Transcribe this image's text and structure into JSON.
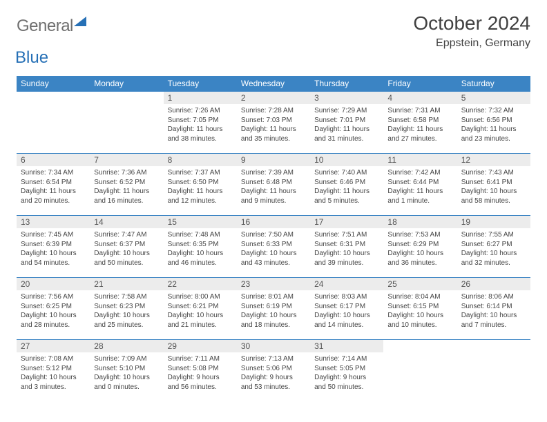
{
  "logo": {
    "text1": "General",
    "text2": "Blue"
  },
  "title": "October 2024",
  "location": "Eppstein, Germany",
  "colors": {
    "header_bg": "#3b84c4",
    "header_text": "#ffffff",
    "daynum_bg": "#ececec",
    "row_border": "#3b84c4",
    "logo_gray": "#6f6f6f",
    "logo_blue": "#2670b6"
  },
  "weekdays": [
    "Sunday",
    "Monday",
    "Tuesday",
    "Wednesday",
    "Thursday",
    "Friday",
    "Saturday"
  ],
  "weeks": [
    [
      {
        "empty": true
      },
      {
        "empty": true
      },
      {
        "n": "1",
        "sr": "Sunrise: 7:26 AM",
        "ss": "Sunset: 7:05 PM",
        "dl": "Daylight: 11 hours and 38 minutes."
      },
      {
        "n": "2",
        "sr": "Sunrise: 7:28 AM",
        "ss": "Sunset: 7:03 PM",
        "dl": "Daylight: 11 hours and 35 minutes."
      },
      {
        "n": "3",
        "sr": "Sunrise: 7:29 AM",
        "ss": "Sunset: 7:01 PM",
        "dl": "Daylight: 11 hours and 31 minutes."
      },
      {
        "n": "4",
        "sr": "Sunrise: 7:31 AM",
        "ss": "Sunset: 6:58 PM",
        "dl": "Daylight: 11 hours and 27 minutes."
      },
      {
        "n": "5",
        "sr": "Sunrise: 7:32 AM",
        "ss": "Sunset: 6:56 PM",
        "dl": "Daylight: 11 hours and 23 minutes."
      }
    ],
    [
      {
        "n": "6",
        "sr": "Sunrise: 7:34 AM",
        "ss": "Sunset: 6:54 PM",
        "dl": "Daylight: 11 hours and 20 minutes."
      },
      {
        "n": "7",
        "sr": "Sunrise: 7:36 AM",
        "ss": "Sunset: 6:52 PM",
        "dl": "Daylight: 11 hours and 16 minutes."
      },
      {
        "n": "8",
        "sr": "Sunrise: 7:37 AM",
        "ss": "Sunset: 6:50 PM",
        "dl": "Daylight: 11 hours and 12 minutes."
      },
      {
        "n": "9",
        "sr": "Sunrise: 7:39 AM",
        "ss": "Sunset: 6:48 PM",
        "dl": "Daylight: 11 hours and 9 minutes."
      },
      {
        "n": "10",
        "sr": "Sunrise: 7:40 AM",
        "ss": "Sunset: 6:46 PM",
        "dl": "Daylight: 11 hours and 5 minutes."
      },
      {
        "n": "11",
        "sr": "Sunrise: 7:42 AM",
        "ss": "Sunset: 6:44 PM",
        "dl": "Daylight: 11 hours and 1 minute."
      },
      {
        "n": "12",
        "sr": "Sunrise: 7:43 AM",
        "ss": "Sunset: 6:41 PM",
        "dl": "Daylight: 10 hours and 58 minutes."
      }
    ],
    [
      {
        "n": "13",
        "sr": "Sunrise: 7:45 AM",
        "ss": "Sunset: 6:39 PM",
        "dl": "Daylight: 10 hours and 54 minutes."
      },
      {
        "n": "14",
        "sr": "Sunrise: 7:47 AM",
        "ss": "Sunset: 6:37 PM",
        "dl": "Daylight: 10 hours and 50 minutes."
      },
      {
        "n": "15",
        "sr": "Sunrise: 7:48 AM",
        "ss": "Sunset: 6:35 PM",
        "dl": "Daylight: 10 hours and 46 minutes."
      },
      {
        "n": "16",
        "sr": "Sunrise: 7:50 AM",
        "ss": "Sunset: 6:33 PM",
        "dl": "Daylight: 10 hours and 43 minutes."
      },
      {
        "n": "17",
        "sr": "Sunrise: 7:51 AM",
        "ss": "Sunset: 6:31 PM",
        "dl": "Daylight: 10 hours and 39 minutes."
      },
      {
        "n": "18",
        "sr": "Sunrise: 7:53 AM",
        "ss": "Sunset: 6:29 PM",
        "dl": "Daylight: 10 hours and 36 minutes."
      },
      {
        "n": "19",
        "sr": "Sunrise: 7:55 AM",
        "ss": "Sunset: 6:27 PM",
        "dl": "Daylight: 10 hours and 32 minutes."
      }
    ],
    [
      {
        "n": "20",
        "sr": "Sunrise: 7:56 AM",
        "ss": "Sunset: 6:25 PM",
        "dl": "Daylight: 10 hours and 28 minutes."
      },
      {
        "n": "21",
        "sr": "Sunrise: 7:58 AM",
        "ss": "Sunset: 6:23 PM",
        "dl": "Daylight: 10 hours and 25 minutes."
      },
      {
        "n": "22",
        "sr": "Sunrise: 8:00 AM",
        "ss": "Sunset: 6:21 PM",
        "dl": "Daylight: 10 hours and 21 minutes."
      },
      {
        "n": "23",
        "sr": "Sunrise: 8:01 AM",
        "ss": "Sunset: 6:19 PM",
        "dl": "Daylight: 10 hours and 18 minutes."
      },
      {
        "n": "24",
        "sr": "Sunrise: 8:03 AM",
        "ss": "Sunset: 6:17 PM",
        "dl": "Daylight: 10 hours and 14 minutes."
      },
      {
        "n": "25",
        "sr": "Sunrise: 8:04 AM",
        "ss": "Sunset: 6:15 PM",
        "dl": "Daylight: 10 hours and 10 minutes."
      },
      {
        "n": "26",
        "sr": "Sunrise: 8:06 AM",
        "ss": "Sunset: 6:14 PM",
        "dl": "Daylight: 10 hours and 7 minutes."
      }
    ],
    [
      {
        "n": "27",
        "sr": "Sunrise: 7:08 AM",
        "ss": "Sunset: 5:12 PM",
        "dl": "Daylight: 10 hours and 3 minutes."
      },
      {
        "n": "28",
        "sr": "Sunrise: 7:09 AM",
        "ss": "Sunset: 5:10 PM",
        "dl": "Daylight: 10 hours and 0 minutes."
      },
      {
        "n": "29",
        "sr": "Sunrise: 7:11 AM",
        "ss": "Sunset: 5:08 PM",
        "dl": "Daylight: 9 hours and 56 minutes."
      },
      {
        "n": "30",
        "sr": "Sunrise: 7:13 AM",
        "ss": "Sunset: 5:06 PM",
        "dl": "Daylight: 9 hours and 53 minutes."
      },
      {
        "n": "31",
        "sr": "Sunrise: 7:14 AM",
        "ss": "Sunset: 5:05 PM",
        "dl": "Daylight: 9 hours and 50 minutes."
      },
      {
        "empty": true
      },
      {
        "empty": true
      }
    ]
  ]
}
